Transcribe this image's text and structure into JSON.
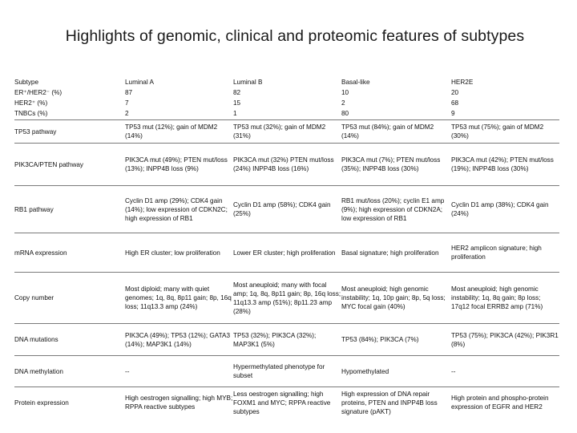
{
  "title": "Highlights of genomic, clinical and proteomic features of subtypes",
  "header": {
    "label": "Subtype",
    "columns": [
      "Luminal A",
      "Luminal B",
      "Basal-like",
      "HER2E"
    ]
  },
  "stats": [
    {
      "label": "ER⁺/HER2⁻ (%)",
      "values": [
        "87",
        "82",
        "10",
        "20"
      ]
    },
    {
      "label": "HER2⁺ (%)",
      "values": [
        "7",
        "15",
        "2",
        "68"
      ]
    },
    {
      "label": "TNBCs (%)",
      "values": [
        "2",
        "1",
        "80",
        "9"
      ]
    }
  ],
  "rows": [
    {
      "label": "TP53 pathway",
      "values": [
        "TP53 mut (12%); gain of MDM2 (14%)",
        "TP53 mut (32%); gain of MDM2 (31%)",
        "TP53 mut (84%); gain of MDM2 (14%)",
        "TP53 mut (75%); gain of MDM2 (30%)"
      ]
    },
    {
      "label": "PIK3CA/PTEN pathway",
      "values": [
        "PIK3CA mut (49%); PTEN mut/loss (13%); INPP4B loss (9%)",
        "PIK3CA mut (32%) PTEN mut/loss (24%) INPP4B loss (16%)",
        "PIK3CA mut (7%); PTEN mut/loss (35%); INPP4B loss (30%)",
        "PIK3CA mut (42%); PTEN mut/loss (19%); INPP4B loss (30%)"
      ]
    },
    {
      "label": "RB1 pathway",
      "values": [
        "Cyclin D1 amp (29%); CDK4 gain (14%); low expression of CDKN2C; high expression of RB1",
        "Cyclin D1 amp (58%); CDK4 gain (25%)",
        "RB1 mut/loss (20%); cyclin E1 amp (9%); high expression of CDKN2A; low expression of RB1",
        "Cyclin D1 amp (38%); CDK4 gain (24%)"
      ]
    },
    {
      "label": "mRNA expression",
      "values": [
        "High ER cluster; low proliferation",
        "Lower ER cluster; high proliferation",
        "Basal signature; high proliferation",
        "HER2 amplicon signature; high proliferation"
      ]
    },
    {
      "label": "Copy number",
      "values": [
        "Most diploid; many with quiet genomes; 1q, 8q, 8p11 gain; 8p, 16q loss; 11q13.3 amp (24%)",
        "Most aneuploid; many with focal amp; 1q, 8q, 8p11 gain; 8p, 16q loss; 11q13.3 amp (51%); 8p11.23 amp (28%)",
        "Most aneuploid; high genomic instability; 1q, 10p gain; 8p, 5q loss; MYC focal gain (40%)",
        "Most aneuploid; high genomic instability; 1q, 8q gain; 8p loss; 17q12 focal ERRB2 amp (71%)"
      ]
    },
    {
      "label": "DNA mutations",
      "values": [
        "PIK3CA (49%); TP53 (12%); GATA3 (14%); MAP3K1 (14%)",
        "TP53 (32%); PIK3CA (32%); MAP3K1 (5%)",
        "TP53 (84%); PIK3CA (7%)",
        "TP53 (75%); PIK3CA (42%); PIK3R1 (8%)"
      ]
    },
    {
      "label": "DNA methylation",
      "values": [
        "--",
        "Hypermethylated phenotype for subset",
        "Hypomethylated",
        "--"
      ]
    },
    {
      "label": "Protein expression",
      "values": [
        "High oestrogen signalling; high MYB; RPPA reactive subtypes",
        "Less oestrogen signalling; high FOXM1 and MYC; RPPA reactive subtypes",
        "High expression of DNA repair proteins, PTEN and INPP4B loss signature (pAKT)",
        "High protein and phospho-protein expression of EGFR and HER2"
      ]
    }
  ]
}
